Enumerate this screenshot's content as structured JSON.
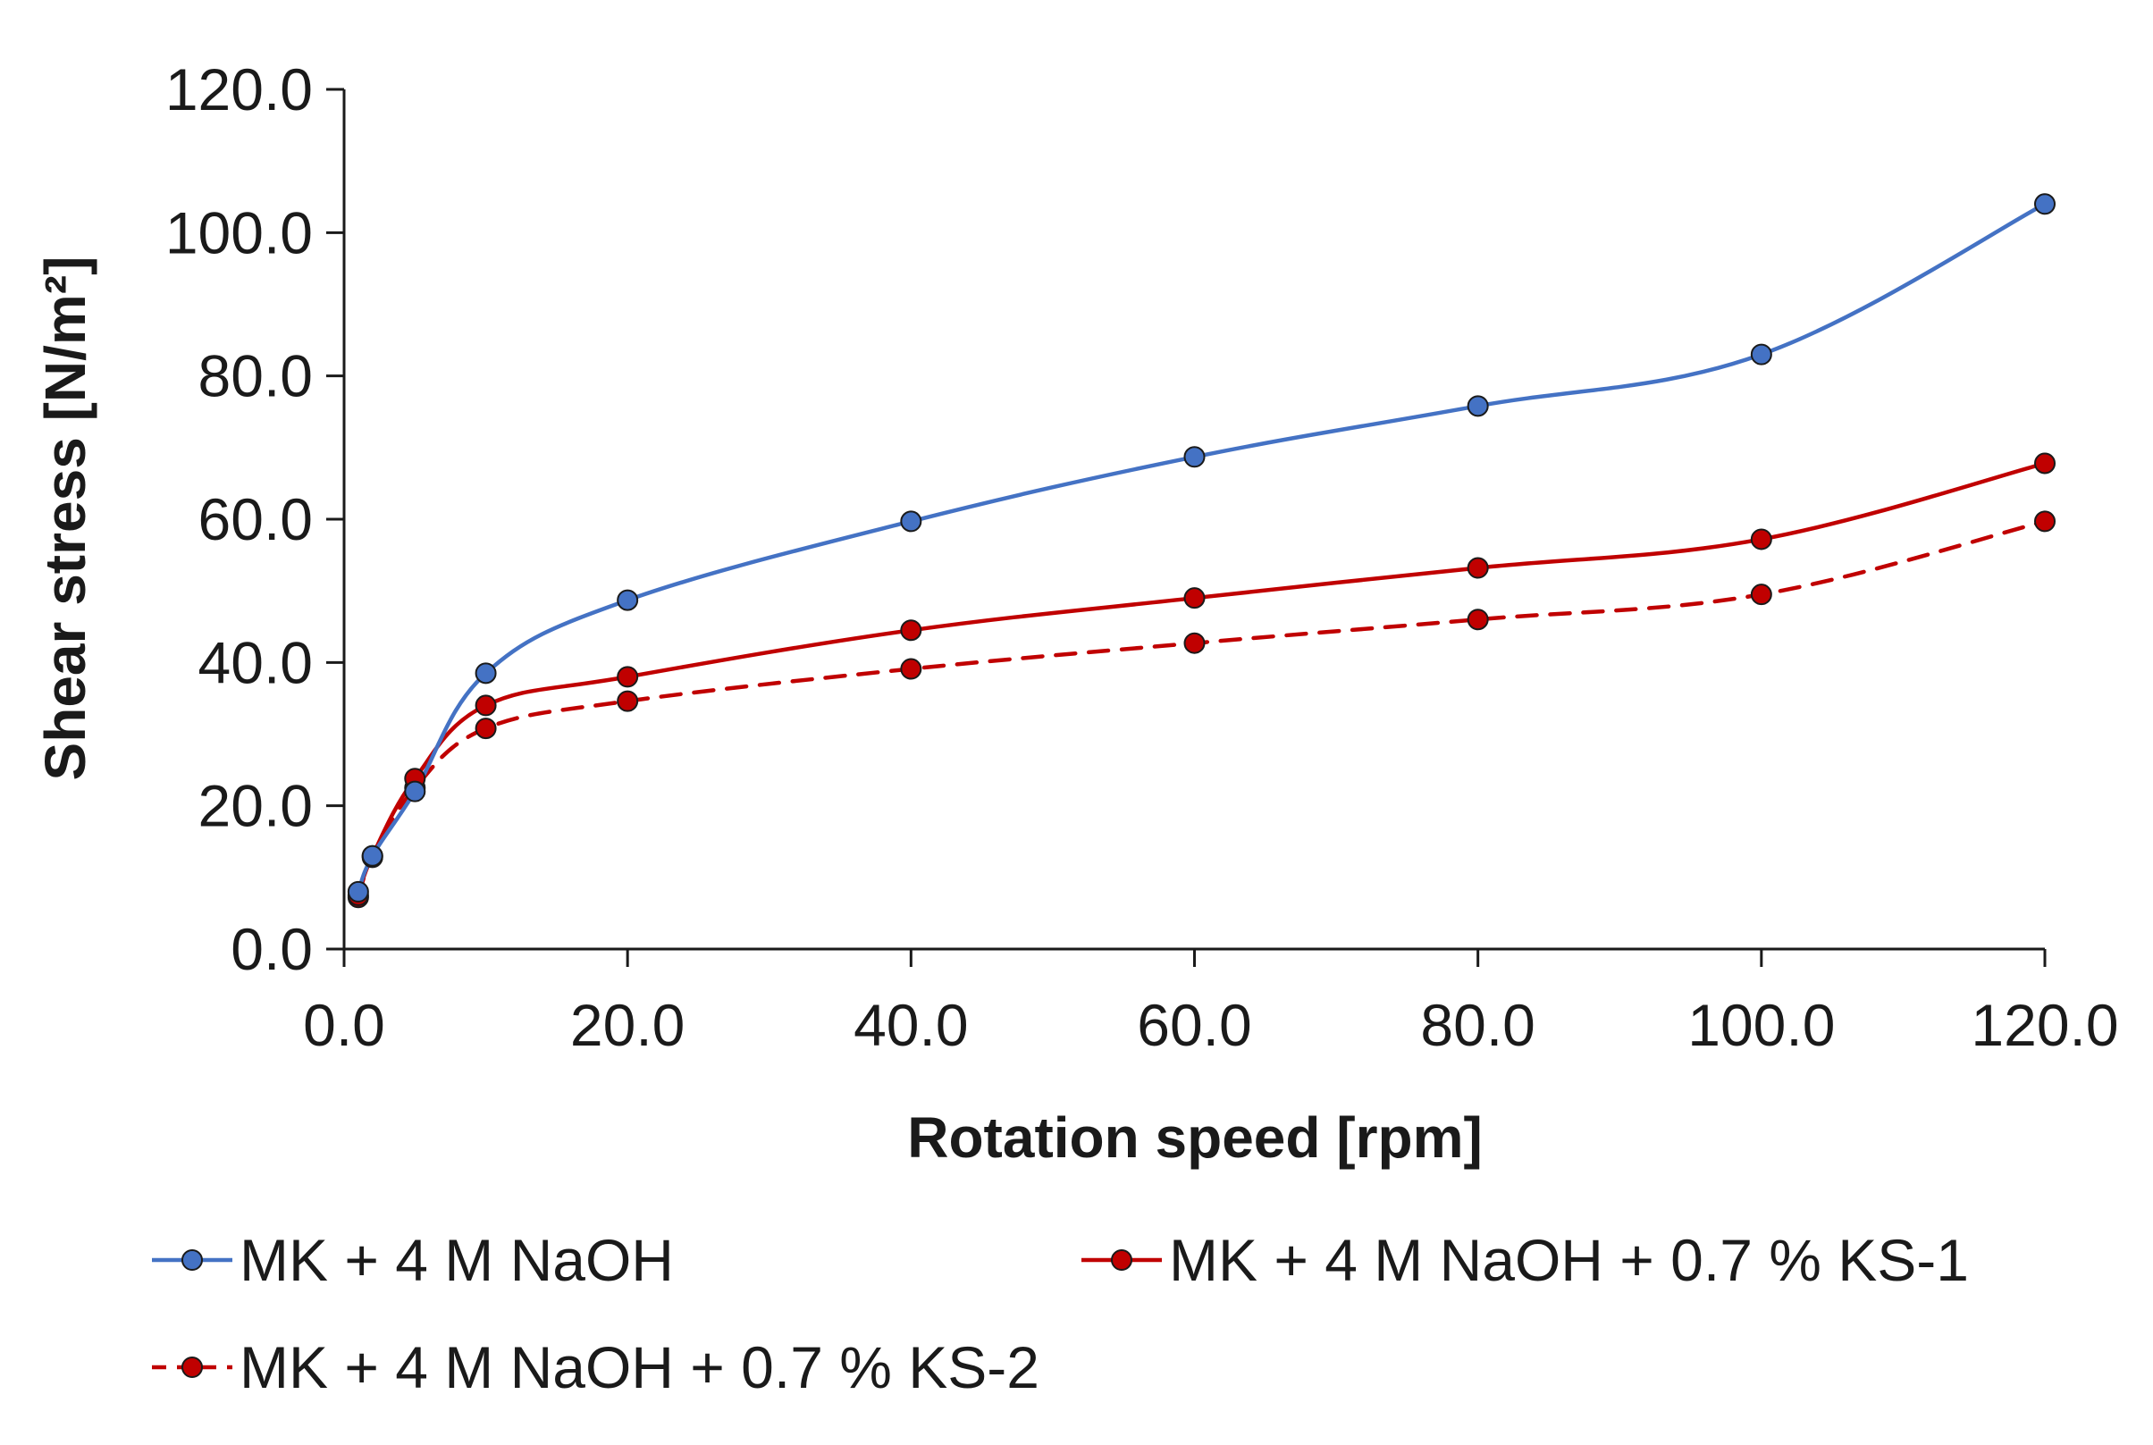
{
  "chart_data": {
    "type": "line",
    "title": "",
    "xlabel": "Rotation speed [rpm]",
    "ylabel": "Shear stress [N/m²]",
    "xlim": [
      0,
      120
    ],
    "ylim": [
      0,
      120
    ],
    "x_ticks": [
      "0.0",
      "20.0",
      "40.0",
      "60.0",
      "80.0",
      "100.0",
      "120.0"
    ],
    "y_ticks": [
      "0.0",
      "20.0",
      "40.0",
      "60.0",
      "80.0",
      "100.0",
      "120.0"
    ],
    "grid": false,
    "legend_position": "bottom",
    "series": [
      {
        "name": "MK + 4 M NaOH",
        "color": "#4472C4",
        "line_style": "solid",
        "x": [
          1,
          2,
          5,
          10,
          20,
          40,
          60,
          80,
          100,
          120
        ],
        "y": [
          8.0,
          13.0,
          22.0,
          38.5,
          48.7,
          59.7,
          68.7,
          75.8,
          83.0,
          104.0
        ]
      },
      {
        "name": "MK + 4 M NaOH + 0.7 % KS-1",
        "color": "#C00000",
        "line_style": "solid",
        "x": [
          1,
          2,
          5,
          10,
          20,
          40,
          60,
          80,
          100,
          120
        ],
        "y": [
          7.5,
          13.0,
          23.8,
          34.0,
          38.0,
          44.5,
          49.0,
          53.2,
          57.2,
          67.8
        ]
      },
      {
        "name": "MK + 4 M NaOH + 0.7 % KS-2",
        "color": "#C00000",
        "line_style": "dashed",
        "x": [
          1,
          2,
          5,
          10,
          20,
          40,
          60,
          80,
          100,
          120
        ],
        "y": [
          7.2,
          12.8,
          22.5,
          30.8,
          34.6,
          39.1,
          42.7,
          46.0,
          49.5,
          59.7
        ]
      }
    ]
  }
}
